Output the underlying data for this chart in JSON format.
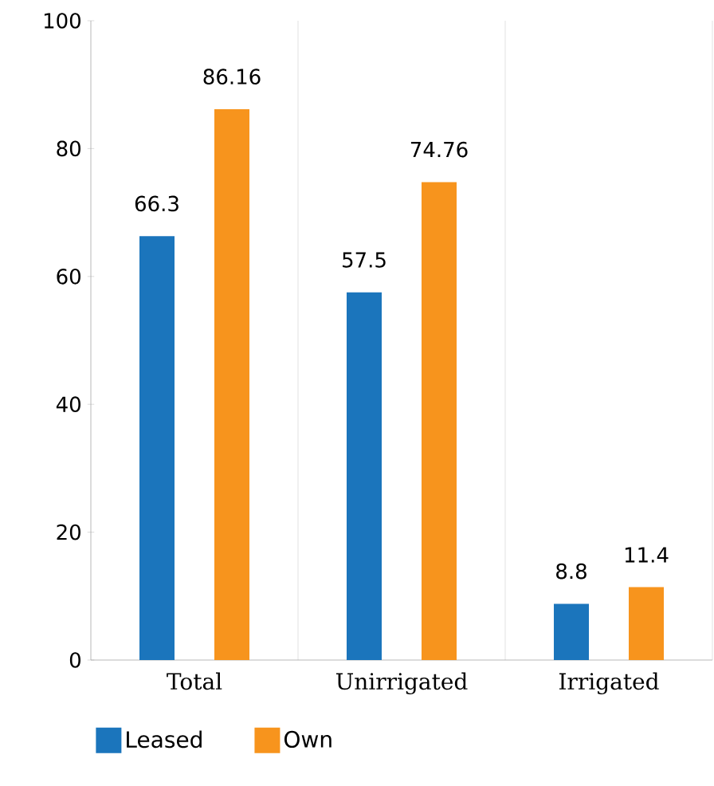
{
  "chart_data": {
    "type": "bar",
    "categories": [
      "Total",
      "Unirrigated",
      "Irrigated"
    ],
    "series": [
      {
        "name": "Leased",
        "color": "#1b75bc",
        "values": [
          66.3,
          57.5,
          8.8
        ]
      },
      {
        "name": "Own",
        "color": "#f7941d",
        "values": [
          86.16,
          74.76,
          11.4
        ]
      }
    ],
    "ylim": [
      0,
      100
    ],
    "yticks": [
      0,
      20,
      40,
      60,
      80,
      100
    ],
    "grid": "x",
    "legend": "bottom left",
    "data_labels": true
  }
}
